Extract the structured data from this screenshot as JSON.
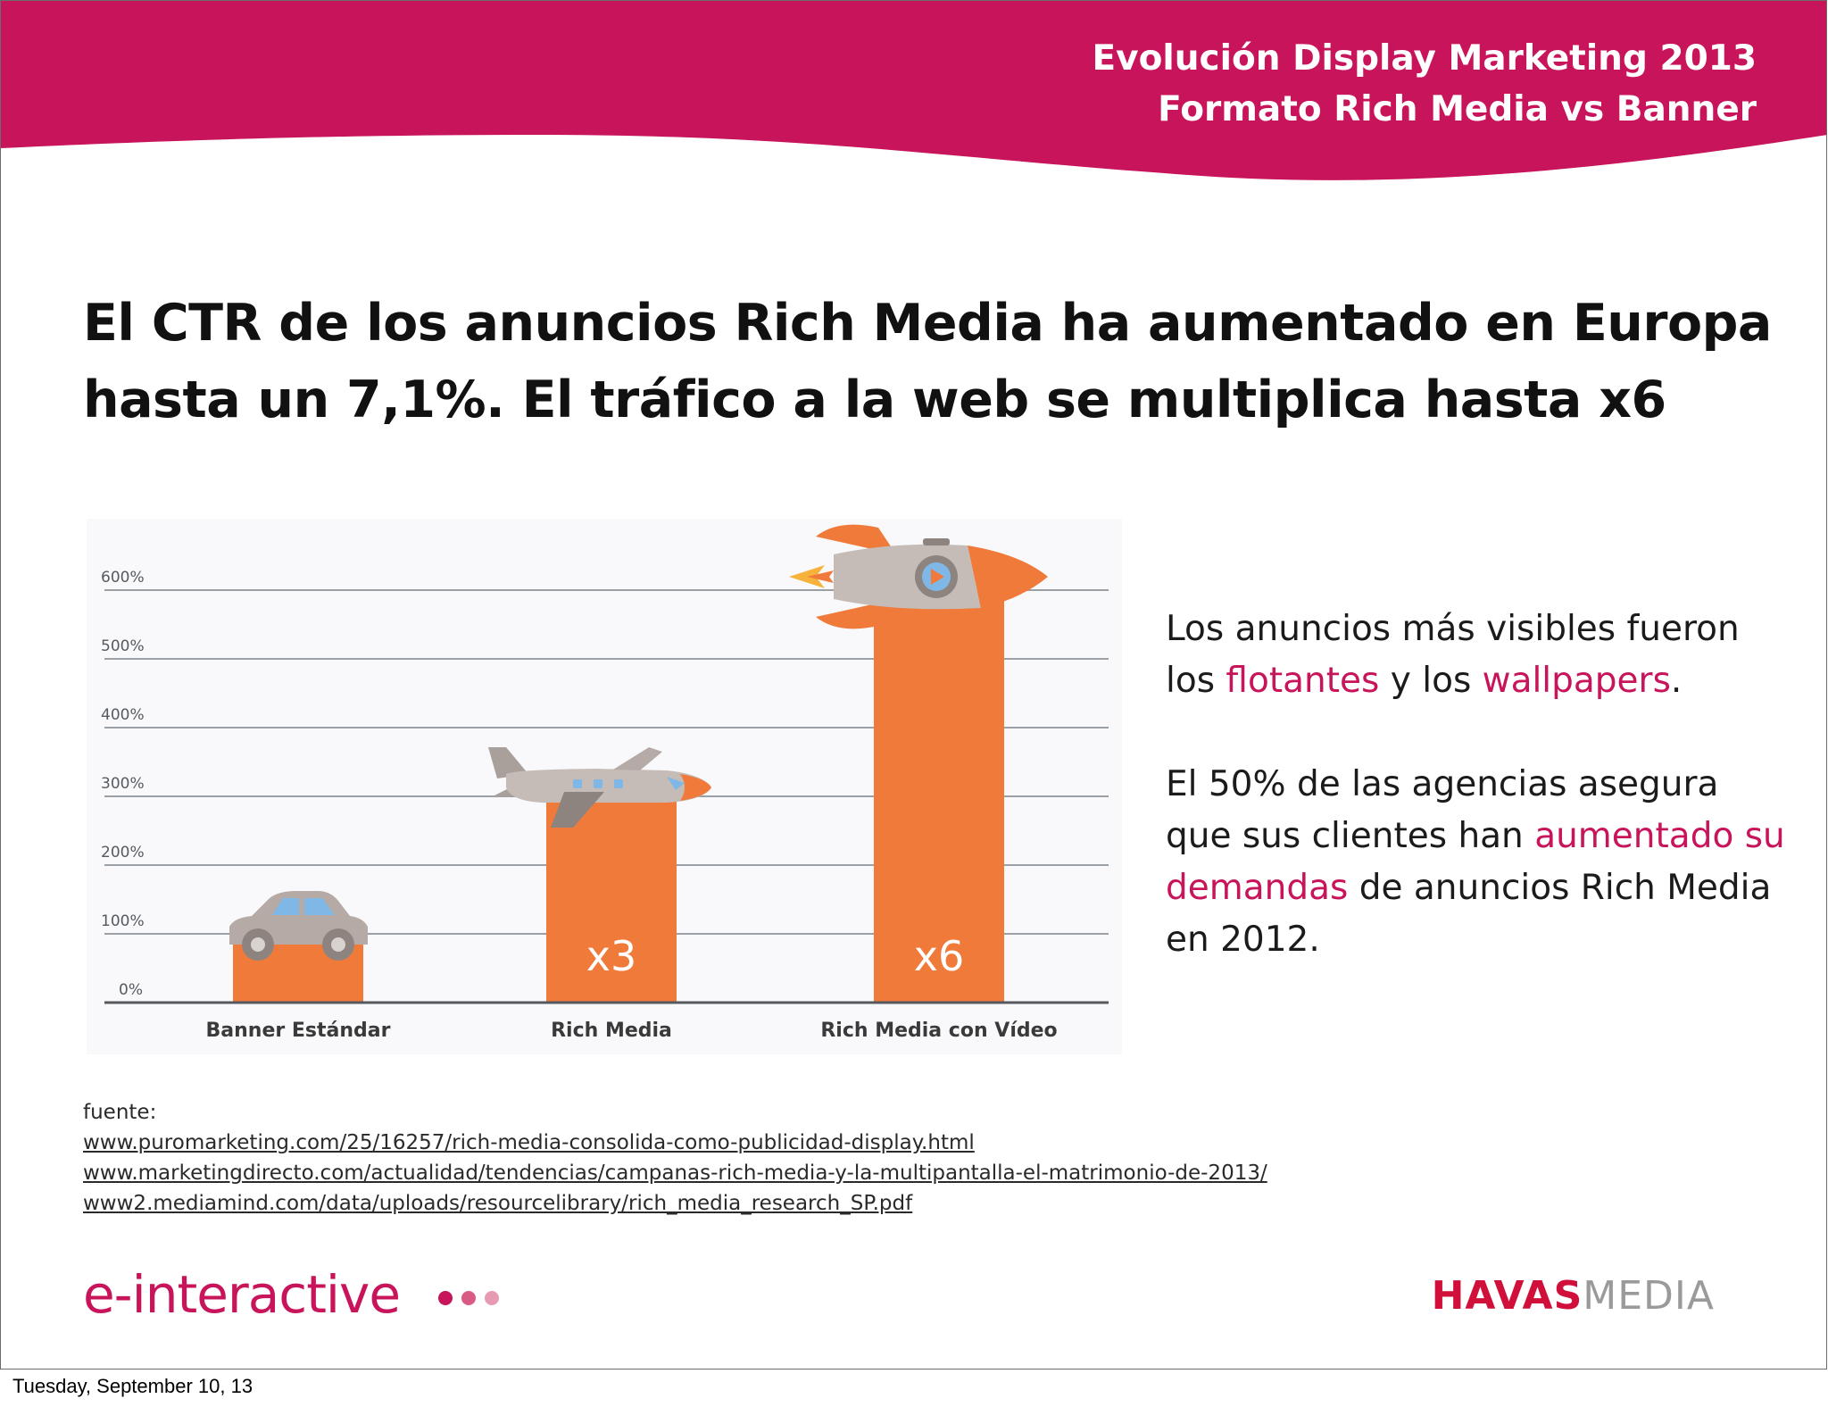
{
  "header": {
    "title_line1": "Evolución Display Marketing 2013",
    "title_line2": "Formato Rich Media vs Banner"
  },
  "headline": {
    "line1": "El CTR de los anuncios Rich Media ha aumentado en Europa",
    "line2": "hasta un 7,1%. El tráfico a la web se multiplica hasta x6"
  },
  "side_text": {
    "p1_a": "Los anuncios más visibles fueron los ",
    "p1_hl1": "flotantes",
    "p1_b": " y los ",
    "p1_hl2": "wallpapers",
    "p1_c": ".",
    "p2_a": "El 50% de las agencias asegura que sus clientes han ",
    "p2_hl": "aumentado su demandas",
    "p2_b": " de anuncios Rich Media en 2012."
  },
  "sources": {
    "label": "fuente:",
    "links": [
      "www.puromarketing.com/25/16257/rich-media-consolida-como-publicidad-display.html",
      "www.marketingdirecto.com/actualidad/tendencias/campanas-rich-media-y-la-multipantalla-el-matrimonio-de-2013/",
      "www2.mediamind.com/data/uploads/resourcelibrary/rich_media_research_SP.pdf"
    ]
  },
  "logos": {
    "left": "e-interactive",
    "right_bold": "HAVAS",
    "right_light": "MEDIA"
  },
  "footer": {
    "date": "Tuesday, September 10, 13"
  },
  "icons": [
    "car-icon",
    "airplane-icon",
    "rocket-icon"
  ],
  "colors": {
    "brand": "#c8145a",
    "bar": "#f07a3a",
    "grid": "#9aa0a6",
    "havas": "#d0103a",
    "dots": [
      "#c8145a",
      "#d95a82",
      "#e79bb3"
    ]
  },
  "chart_data": {
    "type": "bar",
    "title": "",
    "xlabel": "",
    "ylabel": "",
    "categories": [
      "Banner Estándar",
      "Rich Media",
      "Rich Media con Vídeo"
    ],
    "values": [
      100,
      300,
      600
    ],
    "bar_labels": [
      "",
      "x3",
      "x6"
    ],
    "yticks": [
      "0%",
      "100%",
      "200%",
      "300%",
      "400%",
      "500%",
      "600%"
    ],
    "ylim": [
      0,
      600
    ],
    "grid": true,
    "legend": "none"
  }
}
